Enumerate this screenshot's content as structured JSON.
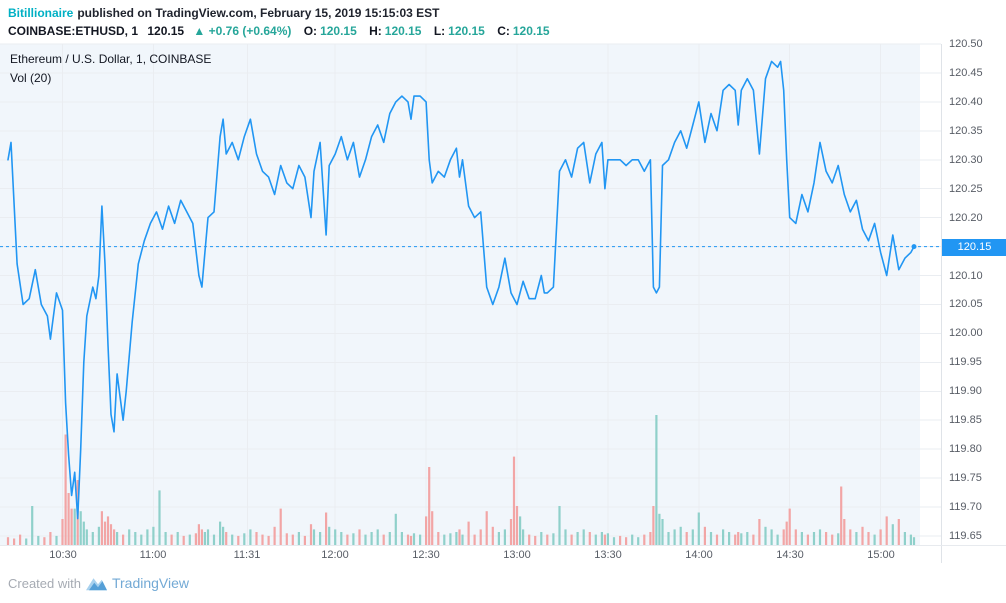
{
  "header": {
    "username": "Bitillionaire",
    "published": "published on TradingView.com, February 15, 2019 15:15:03 EST",
    "symbol": "COINBASE:ETHUSD, 1",
    "price": "120.15",
    "change_arrow": "▲",
    "change": "+0.76 (+0.64%)",
    "ohlc": [
      {
        "label": "O:",
        "value": "120.15"
      },
      {
        "label": "H:",
        "value": "120.15"
      },
      {
        "label": "L:",
        "value": "120.15"
      },
      {
        "label": "C:",
        "value": "120.15"
      }
    ]
  },
  "legend": {
    "title": "Ethereum / U.S. Dollar, 1, COINBASE",
    "volume": "Vol (20)"
  },
  "footer": {
    "created": "Created with",
    "brand": "TradingView"
  },
  "chart_data": {
    "type": "line",
    "title": "Ethereum / U.S. Dollar, 1, COINBASE",
    "subtitle": "Vol (20)",
    "time_start": "10:12",
    "x_ticks": [
      "10:30",
      "11:00",
      "11:31",
      "12:00",
      "12:30",
      "13:00",
      "13:30",
      "14:00",
      "14:30",
      "15:00"
    ],
    "y_ticks": [
      "120.50",
      "120.45",
      "120.40",
      "120.35",
      "120.30",
      "120.25",
      "120.20",
      "120.15",
      "120.10",
      "120.05",
      "120.00",
      "119.95",
      "119.90",
      "119.85",
      "119.80",
      "119.75",
      "119.70",
      "119.65"
    ],
    "ylim": [
      119.65,
      120.5
    ],
    "last_price": 120.15,
    "last_price_label": "120.15",
    "grid": true,
    "points": [
      [
        0,
        120.3
      ],
      [
        1,
        120.33
      ],
      [
        3,
        120.12
      ],
      [
        5,
        120.05
      ],
      [
        7,
        120.06
      ],
      [
        9,
        120.11
      ],
      [
        11,
        120.05
      ],
      [
        13,
        120.03
      ],
      [
        14,
        119.99
      ],
      [
        16,
        120.07
      ],
      [
        18,
        120.04
      ],
      [
        19,
        119.88
      ],
      [
        20,
        119.79
      ],
      [
        21,
        119.72
      ],
      [
        22,
        119.76
      ],
      [
        23,
        119.68
      ],
      [
        24,
        119.8
      ],
      [
        25,
        119.95
      ],
      [
        26,
        120.03
      ],
      [
        28,
        120.08
      ],
      [
        29,
        120.06
      ],
      [
        30,
        120.1
      ],
      [
        31,
        120.22
      ],
      [
        32,
        120.12
      ],
      [
        33,
        119.98
      ],
      [
        34,
        119.86
      ],
      [
        35,
        119.83
      ],
      [
        36,
        119.93
      ],
      [
        37,
        119.89
      ],
      [
        38,
        119.85
      ],
      [
        39,
        119.9
      ],
      [
        41,
        120.02
      ],
      [
        43,
        120.12
      ],
      [
        45,
        120.16
      ],
      [
        47,
        120.19
      ],
      [
        49,
        120.21
      ],
      [
        51,
        120.18
      ],
      [
        53,
        120.22
      ],
      [
        55,
        120.19
      ],
      [
        57,
        120.23
      ],
      [
        59,
        120.21
      ],
      [
        61,
        120.19
      ],
      [
        63,
        120.1
      ],
      [
        64,
        120.08
      ],
      [
        65,
        120.14
      ],
      [
        66,
        120.2
      ],
      [
        68,
        120.21
      ],
      [
        70,
        120.34
      ],
      [
        71,
        120.37
      ],
      [
        72,
        120.31
      ],
      [
        74,
        120.33
      ],
      [
        76,
        120.3
      ],
      [
        78,
        120.34
      ],
      [
        80,
        120.37
      ],
      [
        82,
        120.31
      ],
      [
        84,
        120.28
      ],
      [
        86,
        120.27
      ],
      [
        88,
        120.24
      ],
      [
        90,
        120.29
      ],
      [
        92,
        120.26
      ],
      [
        94,
        120.25
      ],
      [
        96,
        120.29
      ],
      [
        98,
        120.27
      ],
      [
        100,
        120.2
      ],
      [
        101,
        120.28
      ],
      [
        103,
        120.33
      ],
      [
        105,
        120.17
      ],
      [
        106,
        120.29
      ],
      [
        108,
        120.31
      ],
      [
        110,
        120.34
      ],
      [
        112,
        120.3
      ],
      [
        114,
        120.33
      ],
      [
        116,
        120.27
      ],
      [
        118,
        120.3
      ],
      [
        120,
        120.34
      ],
      [
        122,
        120.36
      ],
      [
        124,
        120.33
      ],
      [
        126,
        120.38
      ],
      [
        128,
        120.4
      ],
      [
        130,
        120.41
      ],
      [
        132,
        120.4
      ],
      [
        133,
        120.37
      ],
      [
        134,
        120.41
      ],
      [
        136,
        120.41
      ],
      [
        138,
        120.4
      ],
      [
        139,
        120.3
      ],
      [
        140,
        120.26
      ],
      [
        142,
        120.28
      ],
      [
        144,
        120.27
      ],
      [
        146,
        120.3
      ],
      [
        148,
        120.32
      ],
      [
        149,
        120.27
      ],
      [
        150,
        120.3
      ],
      [
        152,
        120.22
      ],
      [
        154,
        120.2
      ],
      [
        156,
        120.21
      ],
      [
        158,
        120.08
      ],
      [
        160,
        120.05
      ],
      [
        162,
        120.08
      ],
      [
        164,
        120.13
      ],
      [
        166,
        120.07
      ],
      [
        168,
        120.05
      ],
      [
        170,
        120.09
      ],
      [
        172,
        120.06
      ],
      [
        174,
        120.06
      ],
      [
        176,
        120.1
      ],
      [
        177,
        120.07
      ],
      [
        178,
        120.07
      ],
      [
        180,
        120.08
      ],
      [
        182,
        120.28
      ],
      [
        184,
        120.3
      ],
      [
        186,
        120.27
      ],
      [
        188,
        120.32
      ],
      [
        190,
        120.33
      ],
      [
        192,
        120.26
      ],
      [
        194,
        120.31
      ],
      [
        196,
        120.33
      ],
      [
        197,
        120.25
      ],
      [
        198,
        120.3
      ],
      [
        200,
        120.3
      ],
      [
        202,
        120.3
      ],
      [
        204,
        120.29
      ],
      [
        206,
        120.3
      ],
      [
        208,
        120.3
      ],
      [
        210,
        120.28
      ],
      [
        212,
        120.3
      ],
      [
        213,
        120.08
      ],
      [
        214,
        120.07
      ],
      [
        215,
        120.08
      ],
      [
        216,
        120.29
      ],
      [
        218,
        120.3
      ],
      [
        220,
        120.33
      ],
      [
        222,
        120.35
      ],
      [
        224,
        120.32
      ],
      [
        226,
        120.36
      ],
      [
        228,
        120.4
      ],
      [
        230,
        120.33
      ],
      [
        232,
        120.38
      ],
      [
        234,
        120.35
      ],
      [
        236,
        120.42
      ],
      [
        238,
        120.43
      ],
      [
        240,
        120.42
      ],
      [
        241,
        120.36
      ],
      [
        242,
        120.42
      ],
      [
        244,
        120.44
      ],
      [
        246,
        120.42
      ],
      [
        248,
        120.31
      ],
      [
        250,
        120.44
      ],
      [
        252,
        120.47
      ],
      [
        254,
        120.46
      ],
      [
        255,
        120.47
      ],
      [
        256,
        120.42
      ],
      [
        257,
        120.3
      ],
      [
        258,
        120.2
      ],
      [
        260,
        120.19
      ],
      [
        262,
        120.24
      ],
      [
        264,
        120.21
      ],
      [
        266,
        120.26
      ],
      [
        268,
        120.33
      ],
      [
        270,
        120.28
      ],
      [
        272,
        120.26
      ],
      [
        274,
        120.29
      ],
      [
        276,
        120.24
      ],
      [
        278,
        120.21
      ],
      [
        280,
        120.23
      ],
      [
        282,
        120.18
      ],
      [
        284,
        120.16
      ],
      [
        286,
        120.19
      ],
      [
        288,
        120.14
      ],
      [
        290,
        120.1
      ],
      [
        292,
        120.17
      ],
      [
        294,
        120.11
      ],
      [
        296,
        120.13
      ],
      [
        298,
        120.14
      ],
      [
        299,
        120.15
      ]
    ],
    "volume": [
      [
        0,
        6,
        "d"
      ],
      [
        2,
        5,
        "d"
      ],
      [
        4,
        8,
        "d"
      ],
      [
        6,
        5,
        "u"
      ],
      [
        8,
        30,
        "u"
      ],
      [
        10,
        7,
        "u"
      ],
      [
        12,
        6,
        "d"
      ],
      [
        14,
        10,
        "d"
      ],
      [
        16,
        7,
        "u"
      ],
      [
        18,
        20,
        "d"
      ],
      [
        19,
        85,
        "d"
      ],
      [
        20,
        40,
        "d"
      ],
      [
        21,
        28,
        "d"
      ],
      [
        22,
        28,
        "u"
      ],
      [
        23,
        50,
        "d"
      ],
      [
        24,
        26,
        "u"
      ],
      [
        25,
        18,
        "u"
      ],
      [
        26,
        12,
        "u"
      ],
      [
        28,
        10,
        "u"
      ],
      [
        30,
        14,
        "u"
      ],
      [
        31,
        26,
        "d"
      ],
      [
        32,
        18,
        "d"
      ],
      [
        33,
        22,
        "d"
      ],
      [
        34,
        16,
        "d"
      ],
      [
        35,
        12,
        "d"
      ],
      [
        36,
        10,
        "u"
      ],
      [
        38,
        8,
        "d"
      ],
      [
        40,
        12,
        "u"
      ],
      [
        42,
        10,
        "u"
      ],
      [
        44,
        8,
        "u"
      ],
      [
        46,
        12,
        "u"
      ],
      [
        48,
        14,
        "u"
      ],
      [
        50,
        42,
        "u"
      ],
      [
        52,
        10,
        "u"
      ],
      [
        54,
        8,
        "d"
      ],
      [
        56,
        10,
        "u"
      ],
      [
        58,
        7,
        "d"
      ],
      [
        60,
        8,
        "u"
      ],
      [
        62,
        9,
        "d"
      ],
      [
        63,
        16,
        "d"
      ],
      [
        64,
        12,
        "d"
      ],
      [
        65,
        10,
        "u"
      ],
      [
        66,
        12,
        "u"
      ],
      [
        68,
        8,
        "u"
      ],
      [
        70,
        18,
        "u"
      ],
      [
        71,
        14,
        "u"
      ],
      [
        72,
        10,
        "d"
      ],
      [
        74,
        8,
        "u"
      ],
      [
        76,
        7,
        "d"
      ],
      [
        78,
        9,
        "u"
      ],
      [
        80,
        12,
        "u"
      ],
      [
        82,
        10,
        "d"
      ],
      [
        84,
        8,
        "d"
      ],
      [
        86,
        7,
        "d"
      ],
      [
        88,
        14,
        "d"
      ],
      [
        90,
        28,
        "d"
      ],
      [
        92,
        9,
        "d"
      ],
      [
        94,
        8,
        "d"
      ],
      [
        96,
        10,
        "u"
      ],
      [
        98,
        7,
        "d"
      ],
      [
        100,
        16,
        "d"
      ],
      [
        101,
        12,
        "u"
      ],
      [
        103,
        10,
        "u"
      ],
      [
        105,
        25,
        "d"
      ],
      [
        106,
        14,
        "u"
      ],
      [
        108,
        12,
        "u"
      ],
      [
        110,
        10,
        "u"
      ],
      [
        112,
        8,
        "d"
      ],
      [
        114,
        9,
        "u"
      ],
      [
        116,
        12,
        "d"
      ],
      [
        118,
        8,
        "u"
      ],
      [
        120,
        10,
        "u"
      ],
      [
        122,
        12,
        "u"
      ],
      [
        124,
        8,
        "d"
      ],
      [
        126,
        10,
        "u"
      ],
      [
        128,
        24,
        "u"
      ],
      [
        130,
        10,
        "u"
      ],
      [
        132,
        8,
        "d"
      ],
      [
        133,
        7,
        "d"
      ],
      [
        134,
        9,
        "u"
      ],
      [
        136,
        8,
        "u"
      ],
      [
        138,
        22,
        "d"
      ],
      [
        139,
        60,
        "d"
      ],
      [
        140,
        26,
        "d"
      ],
      [
        142,
        10,
        "d"
      ],
      [
        144,
        8,
        "u"
      ],
      [
        146,
        9,
        "u"
      ],
      [
        148,
        10,
        "u"
      ],
      [
        149,
        12,
        "d"
      ],
      [
        150,
        8,
        "u"
      ],
      [
        152,
        18,
        "d"
      ],
      [
        154,
        8,
        "d"
      ],
      [
        156,
        12,
        "d"
      ],
      [
        158,
        26,
        "d"
      ],
      [
        160,
        14,
        "d"
      ],
      [
        162,
        10,
        "u"
      ],
      [
        164,
        12,
        "u"
      ],
      [
        166,
        20,
        "d"
      ],
      [
        167,
        68,
        "d"
      ],
      [
        168,
        30,
        "d"
      ],
      [
        169,
        22,
        "u"
      ],
      [
        170,
        12,
        "u"
      ],
      [
        172,
        8,
        "d"
      ],
      [
        174,
        7,
        "d"
      ],
      [
        176,
        10,
        "u"
      ],
      [
        178,
        8,
        "d"
      ],
      [
        180,
        9,
        "u"
      ],
      [
        182,
        30,
        "u"
      ],
      [
        184,
        12,
        "u"
      ],
      [
        186,
        8,
        "d"
      ],
      [
        188,
        10,
        "u"
      ],
      [
        190,
        12,
        "u"
      ],
      [
        192,
        10,
        "d"
      ],
      [
        194,
        8,
        "u"
      ],
      [
        196,
        10,
        "u"
      ],
      [
        197,
        8,
        "d"
      ],
      [
        198,
        9,
        "u"
      ],
      [
        200,
        6,
        "u"
      ],
      [
        202,
        7,
        "d"
      ],
      [
        204,
        6,
        "d"
      ],
      [
        206,
        8,
        "u"
      ],
      [
        208,
        6,
        "u"
      ],
      [
        210,
        8,
        "d"
      ],
      [
        212,
        10,
        "d"
      ],
      [
        213,
        30,
        "d"
      ],
      [
        214,
        100,
        "u"
      ],
      [
        215,
        24,
        "u"
      ],
      [
        216,
        20,
        "u"
      ],
      [
        218,
        10,
        "u"
      ],
      [
        220,
        12,
        "u"
      ],
      [
        222,
        14,
        "u"
      ],
      [
        224,
        10,
        "d"
      ],
      [
        226,
        12,
        "u"
      ],
      [
        228,
        25,
        "u"
      ],
      [
        230,
        14,
        "d"
      ],
      [
        232,
        10,
        "u"
      ],
      [
        234,
        8,
        "d"
      ],
      [
        236,
        12,
        "u"
      ],
      [
        238,
        10,
        "u"
      ],
      [
        240,
        8,
        "d"
      ],
      [
        241,
        10,
        "d"
      ],
      [
        242,
        9,
        "u"
      ],
      [
        244,
        10,
        "u"
      ],
      [
        246,
        8,
        "d"
      ],
      [
        248,
        20,
        "d"
      ],
      [
        250,
        14,
        "u"
      ],
      [
        252,
        12,
        "u"
      ],
      [
        254,
        8,
        "u"
      ],
      [
        256,
        12,
        "d"
      ],
      [
        257,
        18,
        "d"
      ],
      [
        258,
        28,
        "d"
      ],
      [
        260,
        12,
        "d"
      ],
      [
        262,
        10,
        "u"
      ],
      [
        264,
        8,
        "d"
      ],
      [
        266,
        10,
        "u"
      ],
      [
        268,
        12,
        "u"
      ],
      [
        270,
        10,
        "d"
      ],
      [
        272,
        8,
        "d"
      ],
      [
        274,
        9,
        "u"
      ],
      [
        275,
        45,
        "d"
      ],
      [
        276,
        20,
        "d"
      ],
      [
        278,
        12,
        "d"
      ],
      [
        280,
        10,
        "u"
      ],
      [
        282,
        14,
        "d"
      ],
      [
        284,
        10,
        "d"
      ],
      [
        286,
        8,
        "u"
      ],
      [
        288,
        12,
        "d"
      ],
      [
        290,
        22,
        "d"
      ],
      [
        292,
        16,
        "u"
      ],
      [
        294,
        20,
        "d"
      ],
      [
        296,
        10,
        "u"
      ],
      [
        298,
        8,
        "u"
      ],
      [
        299,
        6,
        "u"
      ]
    ],
    "colors": {
      "line": "#2196f3",
      "badge": "#2196f3",
      "up_vol": "#8fd0ca",
      "down_vol": "#f2a5a5",
      "grid": "#eaedf1",
      "session_tint": "rgba(144,184,222,0.13)",
      "accent_green": "#26a69a",
      "username_teal": "#00b0c4"
    }
  }
}
